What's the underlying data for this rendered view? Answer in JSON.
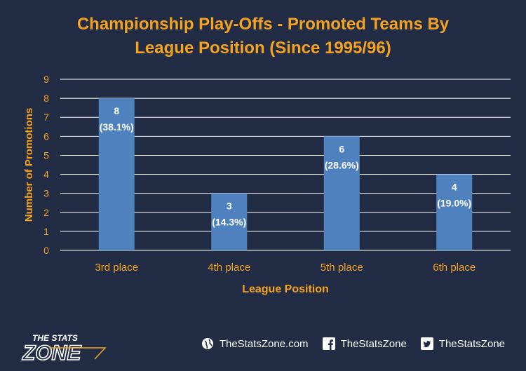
{
  "title_line1": "Championship Play-Offs - Promoted Teams By",
  "title_line2": "League Position (Since 1995/96)",
  "colors": {
    "background": "#222d45",
    "bar": "#4e81bd",
    "accent": "#f4a21f",
    "axis_text": "#f4a21f",
    "category_text": "#f4a21f"
  },
  "chart_data": {
    "type": "bar",
    "categories": [
      "3rd place",
      "4th place",
      "5th place",
      "6th place"
    ],
    "values": [
      8,
      3,
      6,
      4
    ],
    "data_labels": [
      "8",
      "3",
      "6",
      "4"
    ],
    "percent_labels": [
      "(38.1%)",
      "(14.3%)",
      "(28.6%)",
      "(19.0%)"
    ],
    "xlabel": "League Position",
    "ylabel": "Number of Promotions",
    "ylim": [
      0,
      9
    ],
    "yticks": [
      0,
      1,
      2,
      3,
      4,
      5,
      6,
      7,
      8,
      9
    ],
    "grid": true
  },
  "footer": {
    "logo_top": "THE STATS",
    "logo_main": "ZONE",
    "links": [
      {
        "icon": "globe-icon",
        "text": "TheStatsZone.com"
      },
      {
        "icon": "facebook-icon",
        "text": "TheStatsZone"
      },
      {
        "icon": "twitter-icon",
        "text": "TheStatsZone"
      }
    ]
  }
}
